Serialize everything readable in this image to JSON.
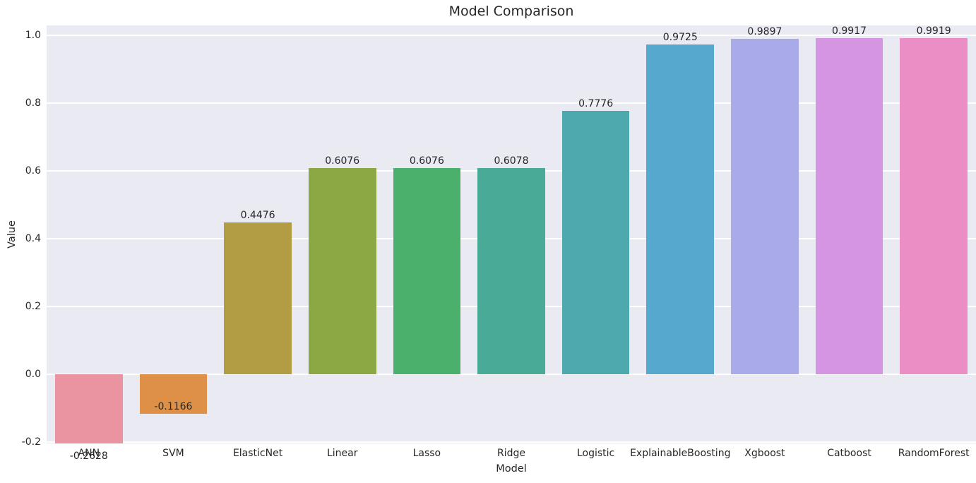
{
  "chart_data": {
    "type": "bar",
    "title": "Model Comparison",
    "xlabel": "Model",
    "ylabel": "Value",
    "categories": [
      "ANN",
      "SVM",
      "ElasticNet",
      "Linear",
      "Lasso",
      "Ridge",
      "Logistic",
      "ExplainableBoosting",
      "Xgboost",
      "Catboost",
      "RandomForest"
    ],
    "values": [
      -0.2628,
      -0.1166,
      0.4476,
      0.6076,
      0.6076,
      0.6078,
      0.7776,
      0.9725,
      0.9897,
      0.9917,
      0.9919
    ],
    "value_labels": [
      "-0.2628",
      "-0.1166",
      "0.4476",
      "0.6076",
      "0.6076",
      "0.6078",
      "0.7776",
      "0.9725",
      "0.9897",
      "0.9917",
      "0.9919"
    ],
    "bar_colors": [
      "#ea93a1",
      "#de9146",
      "#b29d45",
      "#8ca844",
      "#4bb06b",
      "#49aa97",
      "#4da9ae",
      "#56a8ce",
      "#a9abe9",
      "#d595e3",
      "#eb8ec6"
    ],
    "yticks": [
      "1.0",
      "0.8",
      "0.6",
      "0.4",
      "0.2",
      "0.0",
      "-0.2"
    ],
    "ytick_values": [
      1.0,
      0.8,
      0.6,
      0.4,
      0.2,
      0.0,
      -0.2
    ],
    "ylim": [
      -0.2,
      1.0292
    ],
    "grid": true,
    "legend": false,
    "plot_bg": "#eaeaf2",
    "grid_color": "#ffffff",
    "text_color": "#262626"
  }
}
